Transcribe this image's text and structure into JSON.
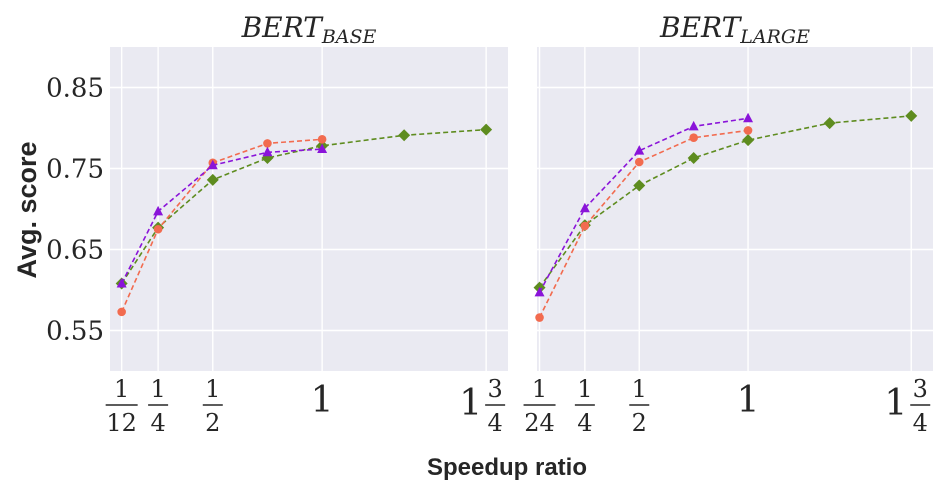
{
  "chart_data": [
    {
      "type": "line",
      "title": "BERT",
      "title_subscript": "BASE",
      "ylabel": "Avg.  score",
      "ylim": [
        0.5,
        0.9
      ],
      "y_ticks": [
        0.55,
        0.65,
        0.75,
        0.85
      ],
      "y_tick_labels": [
        "0.55",
        "0.65",
        "0.75",
        "0.85"
      ],
      "xlim": [
        0.03,
        1.85
      ],
      "x_ticks": [
        {
          "value": 0.0833,
          "whole": "",
          "numerator": "1",
          "denominator": "12"
        },
        {
          "value": 0.25,
          "whole": "",
          "numerator": "1",
          "denominator": "4"
        },
        {
          "value": 0.5,
          "whole": "",
          "numerator": "1",
          "denominator": "2"
        },
        {
          "value": 1.0,
          "whole": "1",
          "numerator": "",
          "denominator": ""
        },
        {
          "value": 1.75,
          "whole": "1",
          "numerator": "3",
          "denominator": "4"
        }
      ],
      "grid": true,
      "series": [
        {
          "name": "series-green",
          "color": "#5e8c1f",
          "marker": "diamond",
          "x": [
            0.0833,
            0.25,
            0.5,
            0.75,
            1.0,
            1.375,
            1.75
          ],
          "y": [
            0.608,
            0.677,
            0.736,
            0.763,
            0.778,
            0.791,
            0.798
          ]
        },
        {
          "name": "series-orange",
          "color": "#f26b4f",
          "marker": "circle",
          "x": [
            0.0833,
            0.25,
            0.5,
            0.75,
            1.0
          ],
          "y": [
            0.573,
            0.675,
            0.757,
            0.781,
            0.786
          ]
        },
        {
          "name": "series-purple",
          "color": "#8a14d9",
          "marker": "triangle",
          "x": [
            0.0833,
            0.25,
            0.5,
            0.75,
            1.0
          ],
          "y": [
            0.608,
            0.697,
            0.754,
            0.77,
            0.774
          ]
        }
      ]
    },
    {
      "type": "line",
      "title": "BERT",
      "title_subscript": "LARGE",
      "ylim": [
        0.5,
        0.9
      ],
      "xlim": [
        0.03,
        1.85
      ],
      "x_ticks": [
        {
          "value": 0.0417,
          "whole": "",
          "numerator": "1",
          "denominator": "24"
        },
        {
          "value": 0.25,
          "whole": "",
          "numerator": "1",
          "denominator": "4"
        },
        {
          "value": 0.5,
          "whole": "",
          "numerator": "1",
          "denominator": "2"
        },
        {
          "value": 1.0,
          "whole": "1",
          "numerator": "",
          "denominator": ""
        },
        {
          "value": 1.75,
          "whole": "1",
          "numerator": "3",
          "denominator": "4"
        }
      ],
      "grid": true,
      "series": [
        {
          "name": "series-green",
          "color": "#5e8c1f",
          "marker": "diamond",
          "x": [
            0.0417,
            0.25,
            0.5,
            0.75,
            1.0,
            1.375,
            1.75
          ],
          "y": [
            0.603,
            0.68,
            0.729,
            0.763,
            0.785,
            0.806,
            0.815
          ]
        },
        {
          "name": "series-orange",
          "color": "#f26b4f",
          "marker": "circle",
          "x": [
            0.0417,
            0.25,
            0.5,
            0.75,
            1.0
          ],
          "y": [
            0.566,
            0.679,
            0.758,
            0.788,
            0.797
          ]
        },
        {
          "name": "series-purple",
          "color": "#8a14d9",
          "marker": "triangle",
          "x": [
            0.0417,
            0.25,
            0.5,
            0.75,
            1.0
          ],
          "y": [
            0.597,
            0.701,
            0.772,
            0.802,
            0.812
          ]
        }
      ]
    }
  ],
  "xlabel": "Speedup ratio",
  "colors": {
    "panel_bg": "#eaeaf2",
    "grid": "#ffffff",
    "text": "#262626"
  }
}
